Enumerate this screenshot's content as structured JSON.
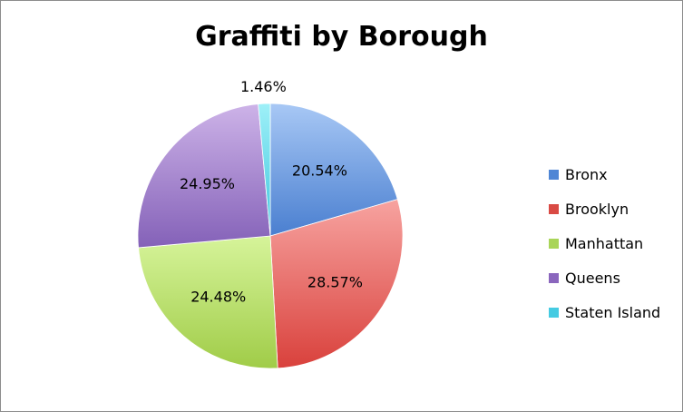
{
  "chart_data": {
    "type": "pie",
    "title": "Graffiti by Borough",
    "categories": [
      "Bronx",
      "Brooklyn",
      "Manhattan",
      "Queens",
      "Staten Island"
    ],
    "values": [
      20.54,
      28.57,
      24.48,
      24.95,
      1.46
    ],
    "data_labels": [
      "20.54%",
      "28.57%",
      "24.48%",
      "24.95%",
      "1.46%"
    ],
    "colors": [
      {
        "light": "#a8c8f5",
        "dark": "#4a7fd0"
      },
      {
        "light": "#f7a3a0",
        "dark": "#d9413c"
      },
      {
        "light": "#d6f49a",
        "dark": "#a0cc48"
      },
      {
        "light": "#cdb3e8",
        "dark": "#8461b8"
      },
      {
        "light": "#9ef0f8",
        "dark": "#3fc6dd"
      }
    ],
    "swatch_colors": [
      "#4f86d5",
      "#d94a44",
      "#a9d558",
      "#8a66bd",
      "#45cbe2"
    ],
    "legend_position": "right"
  }
}
